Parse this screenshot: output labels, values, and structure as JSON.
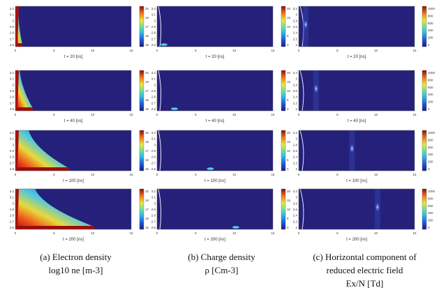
{
  "figure": {
    "columns": [
      {
        "key": "a",
        "caption_line1": "(a) Electron density",
        "caption_line2": "log10 ne [m-3]",
        "colorbar_ticks": [
          "20",
          "18",
          "17",
          "16",
          "15"
        ],
        "x_ticks": [
          "0",
          "5",
          "10",
          "15"
        ],
        "y_ticks": [
          "3.2",
          "3.1",
          "3",
          "2.9",
          "2.8",
          "2.7",
          "2.6"
        ]
      },
      {
        "key": "b",
        "caption_line1": "(b) Charge density",
        "caption_line2": "ρ [Cm-3]",
        "colorbar_ticks": [
          "20",
          "15",
          "10",
          "5",
          "0"
        ],
        "x_ticks": [
          "0",
          "5",
          "10",
          "15"
        ],
        "y_ticks": [
          "3.2",
          "3.1",
          "3",
          "2.9",
          "2.8",
          "2.7",
          "2.6"
        ]
      },
      {
        "key": "c",
        "caption_line1": "(c) Horizontal component of",
        "caption_line2": "reduced electric field",
        "caption_line3": "Ex/N [Td]",
        "colorbar_ticks": [
          "1000",
          "800",
          "600",
          "400",
          "200",
          "0"
        ],
        "x_ticks": [
          "0",
          "5",
          "10",
          "15"
        ],
        "y_ticks": [
          "3.2",
          "3",
          "2.8",
          "2.6",
          "2.4",
          "2.2",
          "2"
        ]
      }
    ],
    "rows": [
      {
        "time_label": "t = 20 [ns]",
        "front_position": 0.06
      },
      {
        "time_label": "t = 40 [ns]",
        "front_position": 0.15
      },
      {
        "time_label": "t = 100 [ns]",
        "front_position": 0.46
      },
      {
        "time_label": "t = 200 [ns]",
        "front_position": 0.68
      }
    ],
    "colors": {
      "background_field": "#25207a",
      "jet_low": "#1c1f7c",
      "jet_high": "#7f0000"
    }
  }
}
